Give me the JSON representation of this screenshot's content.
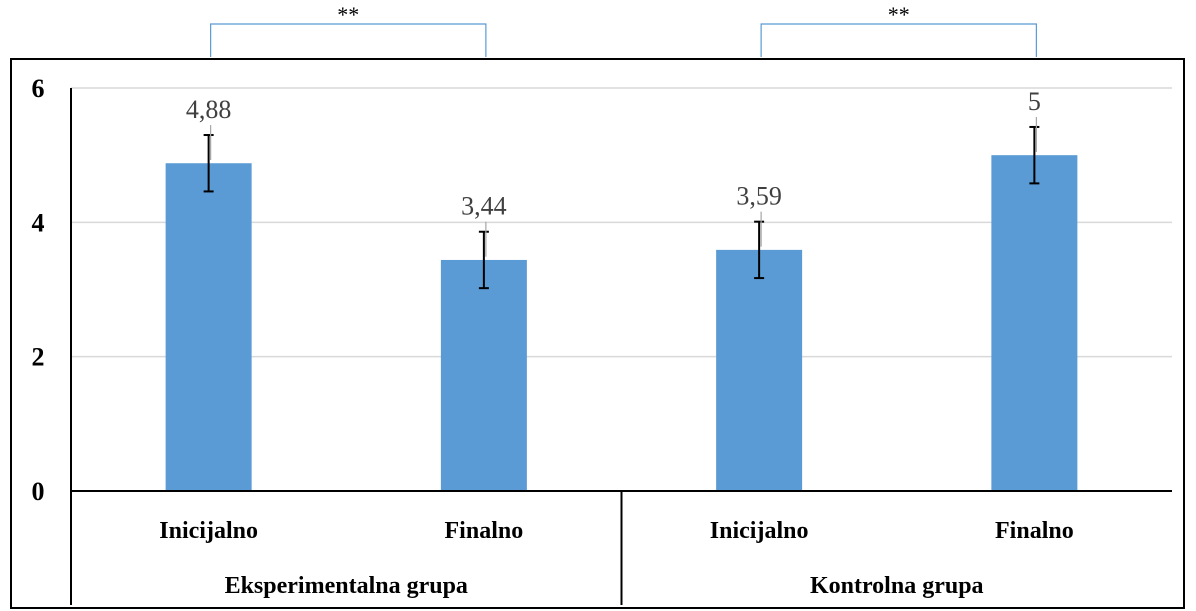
{
  "chart_data": {
    "type": "bar",
    "ylim": [
      0,
      6
    ],
    "yticks": [
      0,
      2,
      4,
      6
    ],
    "grid": true,
    "bar_color": "#5b9bd5",
    "groups": [
      {
        "label": "Eksperimentalna grupa",
        "bars": [
          {
            "category": "Inicijalno",
            "value": 4.88,
            "value_label": "4,88",
            "error": 0.42
          },
          {
            "category": "Finalno",
            "value": 3.44,
            "value_label": "3,44",
            "error": 0.42
          }
        ],
        "significance": "**"
      },
      {
        "label": "Kontrolna grupa",
        "bars": [
          {
            "category": "Inicijalno",
            "value": 3.59,
            "value_label": "3,59",
            "error": 0.42
          },
          {
            "category": "Finalno",
            "value": 5,
            "value_label": "5",
            "error": 0.42
          }
        ],
        "significance": "**"
      }
    ]
  }
}
